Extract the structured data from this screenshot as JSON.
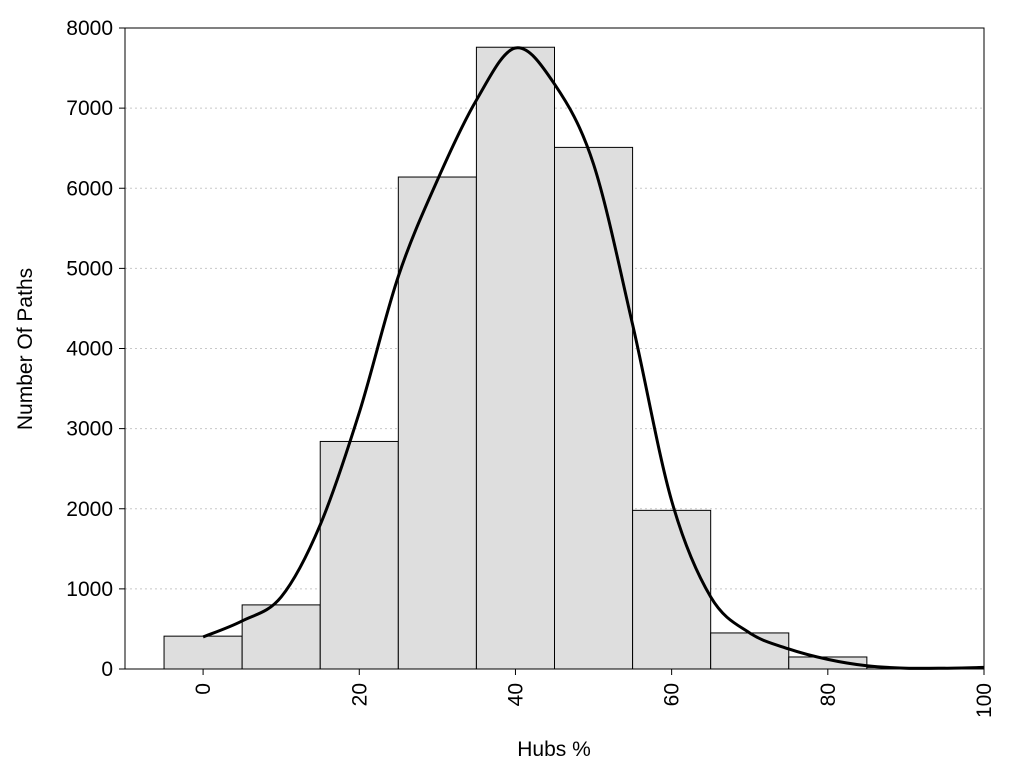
{
  "chart_data": {
    "type": "bar",
    "xlabel": "Hubs %",
    "ylabel": "Number Of Paths",
    "xlim": [
      -10,
      100
    ],
    "ylim": [
      0,
      8000
    ],
    "xticks": [
      "0",
      "20",
      "40",
      "60",
      "80",
      "100"
    ],
    "yticks": [
      "0",
      "1000",
      "2000",
      "3000",
      "4000",
      "5000",
      "6000",
      "7000",
      "8000"
    ],
    "grid": "horizontal dotted",
    "legend": "none",
    "bin_width": 10,
    "categories": [
      0,
      10,
      20,
      30,
      40,
      50,
      60,
      70,
      80,
      90
    ],
    "values": [
      410,
      800,
      2840,
      6140,
      7760,
      6510,
      1980,
      450,
      150,
      20
    ],
    "fit_curve": {
      "x": [
        0,
        5,
        10,
        15,
        20,
        25,
        30,
        35,
        40,
        45,
        50,
        55,
        60,
        65,
        70,
        75,
        80,
        85,
        90,
        95,
        100
      ],
      "y": [
        400,
        600,
        900,
        1800,
        3200,
        4900,
        6100,
        7100,
        7750,
        7300,
        6300,
        4300,
        2100,
        900,
        450,
        250,
        120,
        40,
        10,
        10,
        20
      ]
    },
    "colors": {
      "bar_fill": "#dedede",
      "bar_stroke": "#000000",
      "curve": "#000000"
    }
  }
}
